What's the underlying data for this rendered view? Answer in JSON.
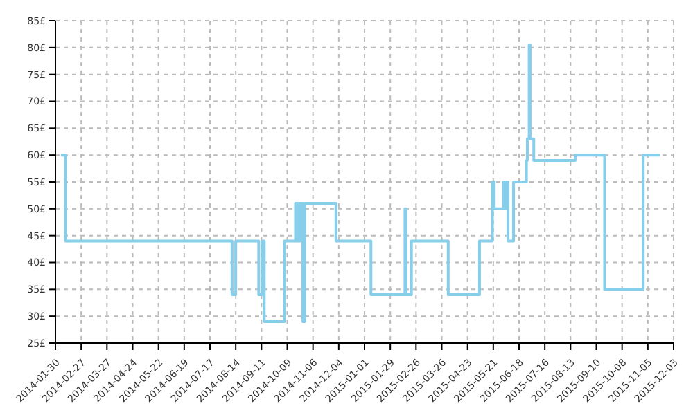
{
  "chart_data": {
    "type": "step",
    "x": [
      "2014-02-05",
      "2014-02-10",
      "2014-08-10",
      "2014-08-14",
      "2014-09-08",
      "2014-09-12",
      "2014-09-14",
      "2014-10-06",
      "2014-10-18",
      "2014-10-20",
      "2014-10-21",
      "2014-10-23",
      "2014-10-24",
      "2014-10-26",
      "2014-10-28",
      "2014-12-01",
      "2015-01-08",
      "2015-02-14",
      "2015-02-15",
      "2015-02-21",
      "2015-04-02",
      "2015-05-06",
      "2015-05-20",
      "2015-05-22",
      "2015-06-01",
      "2015-06-03",
      "2015-06-04",
      "2015-06-06",
      "2015-06-12",
      "2015-06-26",
      "2015-06-27",
      "2015-06-29",
      "2015-06-30",
      "2015-07-04",
      "2015-08-18",
      "2015-09-19",
      "2015-10-31",
      "2015-11-18"
    ],
    "series": [
      {
        "color": "#87ceeb",
        "values": [
          60,
          44,
          34,
          44,
          34,
          44,
          29,
          44,
          51,
          44,
          51,
          44,
          51,
          29,
          51,
          44,
          34,
          50,
          34,
          44,
          34,
          44,
          55,
          50,
          55,
          50,
          55,
          44,
          55,
          59,
          63,
          80.5,
          63,
          59,
          60,
          35,
          60,
          60
        ]
      }
    ],
    "xlim": [
      "2014-01-30",
      "2015-12-03"
    ],
    "xticks": [
      "2014-01-30",
      "2014-02-27",
      "2014-03-27",
      "2014-04-24",
      "2014-05-22",
      "2014-06-19",
      "2014-07-17",
      "2014-08-14",
      "2014-09-11",
      "2014-10-09",
      "2014-11-06",
      "2014-12-04",
      "2015-01-01",
      "2015-01-29",
      "2015-02-26",
      "2015-03-26",
      "2015-04-23",
      "2015-05-21",
      "2015-06-18",
      "2015-07-16",
      "2015-08-13",
      "2015-09-10",
      "2015-10-08",
      "2015-11-05",
      "2015-12-03"
    ],
    "ylim": [
      25,
      85
    ],
    "yticks": [
      {
        "value": 25,
        "label": "25£"
      },
      {
        "value": 30,
        "label": "30£"
      },
      {
        "value": 35,
        "label": "35£"
      },
      {
        "value": 40,
        "label": "40£"
      },
      {
        "value": 45,
        "label": "45£"
      },
      {
        "value": 50,
        "label": "50£"
      },
      {
        "value": 55,
        "label": "55£"
      },
      {
        "value": 60,
        "label": "60£"
      },
      {
        "value": 65,
        "label": "65£"
      },
      {
        "value": 70,
        "label": "70£"
      },
      {
        "value": 75,
        "label": "75£"
      },
      {
        "value": 80,
        "label": "80£"
      },
      {
        "value": 85,
        "label": "85£"
      }
    ],
    "grid": true,
    "line_style": "solid",
    "marker": "none"
  }
}
